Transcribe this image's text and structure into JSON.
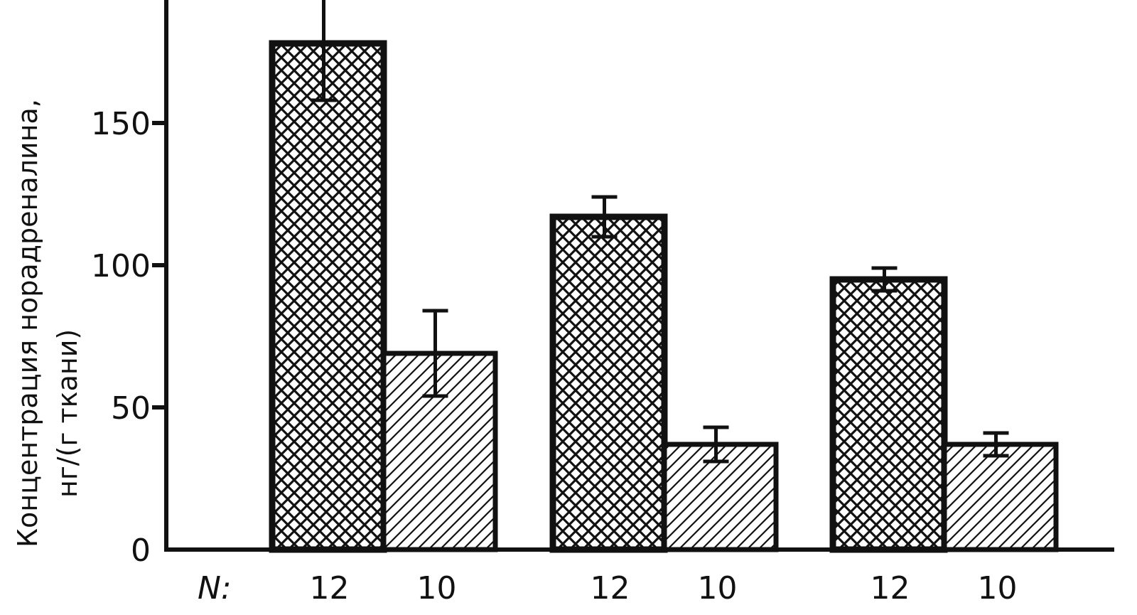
{
  "chart_data": {
    "type": "bar",
    "title": "",
    "ylabel_lines": [
      "Концентрация норадреналина,",
      "нг/(г ткани)"
    ],
    "xlabel": "",
    "ylim": [
      0,
      200
    ],
    "yticks": [
      0,
      50,
      100,
      150
    ],
    "ytick_labels": [
      "0",
      "50",
      "100",
      "150"
    ],
    "n_prefix": "N:",
    "groups": [
      {
        "bars": [
          {
            "pattern": "crosshatch",
            "value": 178,
            "error": 20,
            "n": "12"
          },
          {
            "pattern": "diagonal",
            "value": 69,
            "error": 15,
            "n": "10"
          }
        ]
      },
      {
        "bars": [
          {
            "pattern": "crosshatch",
            "value": 117,
            "error": 7,
            "n": "12"
          },
          {
            "pattern": "diagonal",
            "value": 37,
            "error": 6,
            "n": "10"
          }
        ]
      },
      {
        "bars": [
          {
            "pattern": "crosshatch",
            "value": 95,
            "error": 4,
            "n": "12"
          },
          {
            "pattern": "diagonal",
            "value": 37,
            "error": 4,
            "n": "10"
          }
        ]
      }
    ],
    "grid": false,
    "legend": "none"
  }
}
